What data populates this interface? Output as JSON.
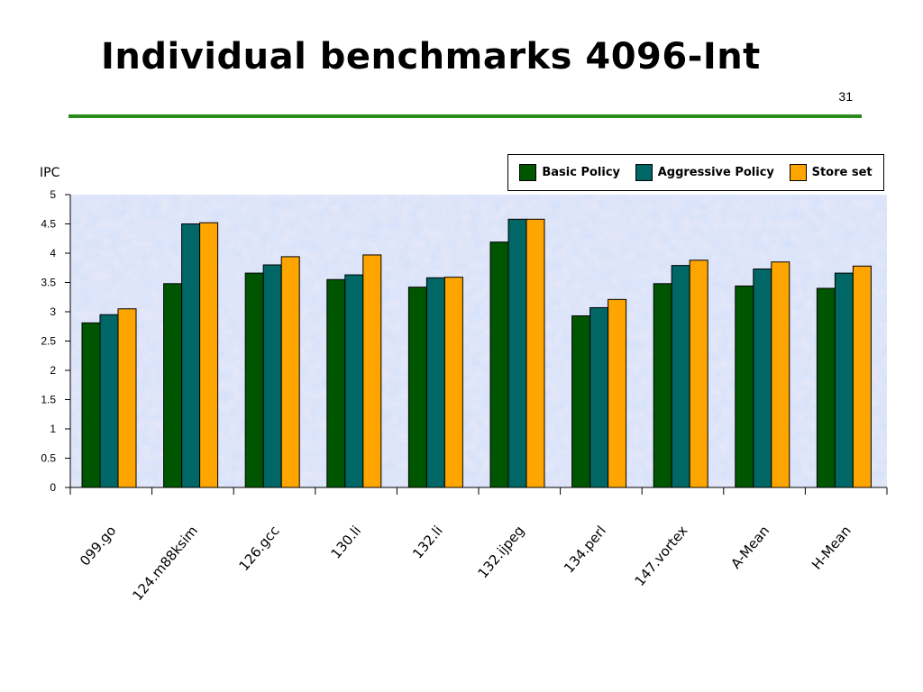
{
  "slide": {
    "title": "Individual benchmarks 4096-Int",
    "page_number": "31",
    "rule_color": "#2a8a1c"
  },
  "chart_data": {
    "type": "bar",
    "title": "",
    "xlabel": "",
    "ylabel": "IPC",
    "ylim": [
      0,
      5
    ],
    "yticks": [
      "0",
      "0.5",
      "1",
      "1.5",
      "2",
      "2.5",
      "3",
      "3.5",
      "4",
      "4.5",
      "5"
    ],
    "grid": false,
    "legend_position": "top-right",
    "plot_background": "light blue mottled texture",
    "categories": [
      "099.go",
      "124.m88ksim",
      "126.gcc",
      "130.li",
      "132.li",
      "132.ijpeg",
      "134.perl",
      "147.vortex",
      "A-Mean",
      "H-Mean"
    ],
    "series": [
      {
        "name": "Basic Policy",
        "color": "#005500",
        "values": [
          2.81,
          3.48,
          3.66,
          3.55,
          3.42,
          4.19,
          2.93,
          3.48,
          3.44,
          3.4
        ]
      },
      {
        "name": "Aggressive Policy",
        "color": "#006666",
        "values": [
          2.95,
          4.5,
          3.8,
          3.63,
          3.58,
          4.58,
          3.07,
          3.79,
          3.73,
          3.66
        ]
      },
      {
        "name": "Store set",
        "color": "#ffa500",
        "values": [
          3.05,
          4.52,
          3.94,
          3.97,
          3.59,
          4.58,
          3.21,
          3.88,
          3.85,
          3.78
        ]
      }
    ]
  }
}
